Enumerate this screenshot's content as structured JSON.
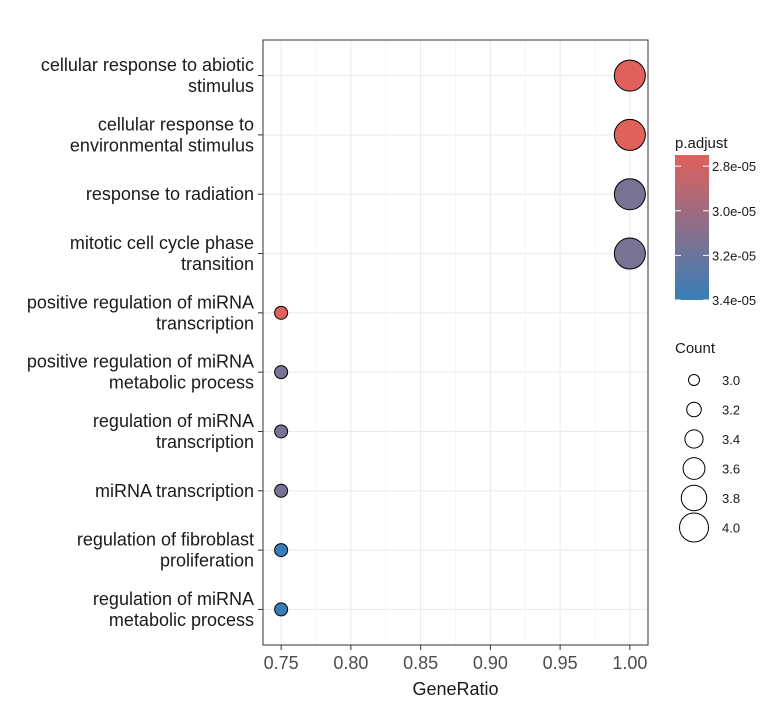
{
  "chart_data": {
    "type": "scatter",
    "xlabel": "GeneRatio",
    "xlim": [
      0.737,
      1.013
    ],
    "x_ticks": [
      "0.75",
      "0.80",
      "0.85",
      "0.90",
      "0.95",
      "1.00"
    ],
    "x_tick_values": [
      0.75,
      0.8,
      0.85,
      0.9,
      0.95,
      1.0
    ],
    "grid": true,
    "points": [
      {
        "term": "cellular response to abiotic\nstimulus",
        "gene_ratio": 1.0,
        "count": 4,
        "p_adjust": 2.75e-05
      },
      {
        "term": "cellular response to\nenvironmental stimulus",
        "gene_ratio": 1.0,
        "count": 4,
        "p_adjust": 2.75e-05
      },
      {
        "term": "response to radiation",
        "gene_ratio": 1.0,
        "count": 4,
        "p_adjust": 3.15e-05
      },
      {
        "term": "mitotic cell cycle phase\ntransition",
        "gene_ratio": 1.0,
        "count": 4,
        "p_adjust": 3.15e-05
      },
      {
        "term": "positive regulation of miRNA\ntranscription",
        "gene_ratio": 0.75,
        "count": 3,
        "p_adjust": 2.75e-05
      },
      {
        "term": "positive regulation of miRNA\nmetabolic process",
        "gene_ratio": 0.75,
        "count": 3,
        "p_adjust": 3.15e-05
      },
      {
        "term": "regulation of miRNA\ntranscription",
        "gene_ratio": 0.75,
        "count": 3,
        "p_adjust": 3.15e-05
      },
      {
        "term": "miRNA transcription",
        "gene_ratio": 0.75,
        "count": 3,
        "p_adjust": 3.15e-05
      },
      {
        "term": "regulation of fibroblast\nproliferation",
        "gene_ratio": 0.75,
        "count": 3,
        "p_adjust": 3.4e-05
      },
      {
        "term": "regulation of miRNA\nmetabolic process",
        "gene_ratio": 0.75,
        "count": 3,
        "p_adjust": 3.4e-05
      }
    ],
    "color_legend": {
      "title": "p.adjust",
      "low_color": "#e0605b",
      "high_color": "#377eb8",
      "range": [
        2.75e-05,
        3.4e-05
      ],
      "labels": [
        "2.8e-05",
        "3.0e-05",
        "3.2e-05",
        "3.4e-05"
      ],
      "values": [
        2.8e-05,
        3e-05,
        3.2e-05,
        3.4e-05
      ]
    },
    "size_legend": {
      "title": "Count",
      "labels": [
        "3.0",
        "3.2",
        "3.4",
        "3.6",
        "3.8",
        "4.0"
      ],
      "values": [
        3.0,
        3.2,
        3.4,
        3.6,
        3.8,
        4.0
      ]
    },
    "legend_position": "right"
  }
}
